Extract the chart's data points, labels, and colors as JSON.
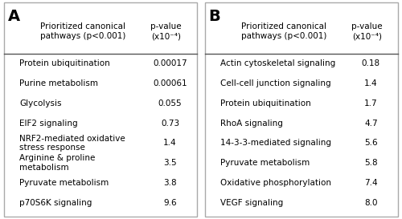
{
  "panel_A": {
    "label": "A",
    "header_col1": "Prioritized canonical\npathways (p<0.001)",
    "header_col2": "p-value\n(x10⁻⁴)",
    "rows": [
      [
        "Protein ubiquitination",
        "0.00017"
      ],
      [
        "Purine metabolism",
        "0.00061"
      ],
      [
        "Glycolysis",
        "0.055"
      ],
      [
        "EIF2 signaling",
        "0.73"
      ],
      [
        "NRF2-mediated oxidative\nstress response",
        "1.4"
      ],
      [
        "Arginine & proline\nmetabolism",
        "3.5"
      ],
      [
        "Pyruvate metabolism",
        "3.8"
      ],
      [
        "p70S6K signaling",
        "9.6"
      ]
    ]
  },
  "panel_B": {
    "label": "B",
    "header_col1": "Prioritized canonical\npathways (p<0.001)",
    "header_col2": "p-value\n(x10⁻⁴)",
    "rows": [
      [
        "Actin cytoskeletal signaling",
        "0.18"
      ],
      [
        "Cell-cell junction signaling",
        "1.4"
      ],
      [
        "Protein ubiquitination",
        "1.7"
      ],
      [
        "RhoA signaling",
        "4.7"
      ],
      [
        "14-3-3-mediated signaling",
        "5.6"
      ],
      [
        "Pyruvate metabolism",
        "5.8"
      ],
      [
        "Oxidative phosphorylation",
        "7.4"
      ],
      [
        "VEGF signaling",
        "8.0"
      ]
    ]
  },
  "background_color": "#ffffff",
  "border_color": "#aaaaaa",
  "text_color": "#000000",
  "font_size": 7.5,
  "header_font_size": 7.5,
  "label_font_size": 14
}
